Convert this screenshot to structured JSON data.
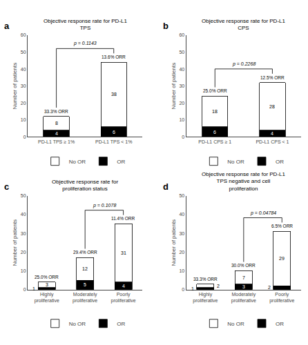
{
  "chart_data": [
    {
      "type": "bar",
      "panel_label": "a",
      "title": "Objective response rate for PD-L1 TPS",
      "categories": [
        "PD-L1 TPS ≥ 1%",
        "PD-L1 TPS < 1%"
      ],
      "series": [
        {
          "name": "OR",
          "color": "#000000",
          "values": [
            4,
            6
          ]
        },
        {
          "name": "No OR",
          "color": "#ffffff",
          "values": [
            8,
            38
          ]
        }
      ],
      "stacked": true,
      "data_labels": true,
      "grid": false,
      "legend": "bottom",
      "ylabel": "Number of patients",
      "ylim": [
        0,
        60
      ],
      "yticks": [
        0,
        10,
        20,
        30,
        40,
        50,
        60
      ],
      "annotations": [
        {
          "text": "33.3% ORR",
          "category": "PD-L1 TPS ≥ 1%"
        },
        {
          "text": "13.6% ORR",
          "category": "PD-L1 TPS < 1%"
        },
        {
          "text": "p = 0.1143",
          "bracket": [
            "PD-L1 TPS ≥ 1%",
            "PD-L1 TPS < 1%"
          ]
        }
      ]
    },
    {
      "type": "bar",
      "panel_label": "b",
      "title": "Objective response rate for PD-L1 CPS",
      "categories": [
        "PD-L1 CPS ≥ 1",
        "PD-L1 CPS < 1"
      ],
      "series": [
        {
          "name": "OR",
          "color": "#000000",
          "values": [
            6,
            4
          ]
        },
        {
          "name": "No OR",
          "color": "#ffffff",
          "values": [
            18,
            28
          ]
        }
      ],
      "stacked": true,
      "data_labels": true,
      "grid": false,
      "legend": "bottom",
      "ylabel": "Number of patients",
      "ylim": [
        0,
        60
      ],
      "yticks": [
        0,
        10,
        20,
        30,
        40,
        50,
        60
      ],
      "annotations": [
        {
          "text": "25.0% ORR",
          "category": "PD-L1 CPS ≥ 1"
        },
        {
          "text": "12.5% ORR",
          "category": "PD-L1 CPS < 1"
        },
        {
          "text": "p = 0.2268",
          "bracket": [
            "PD-L1 CPS ≥ 1",
            "PD-L1 CPS < 1"
          ]
        }
      ]
    },
    {
      "type": "bar",
      "panel_label": "c",
      "title": "Objective response rate for proliferation status",
      "categories": [
        "Highly\nproliferative",
        "Moderately\nproliferative",
        "Poorly\nproliferative"
      ],
      "series": [
        {
          "name": "OR",
          "color": "#000000",
          "values": [
            1,
            5,
            4
          ]
        },
        {
          "name": "No OR",
          "color": "#ffffff",
          "values": [
            3,
            12,
            31
          ]
        }
      ],
      "stacked": true,
      "data_labels": true,
      "grid": false,
      "legend": "bottom",
      "ylabel": "Number of patients",
      "ylim": [
        0,
        50
      ],
      "yticks": [
        0,
        10,
        20,
        30,
        40,
        50
      ],
      "annotations": [
        {
          "text": "25.0% ORR",
          "category": "Highly\nproliferative"
        },
        {
          "text": "29.4% ORR",
          "category": "Moderately\nproliferative"
        },
        {
          "text": "11.4% ORR",
          "category": "Poorly\nproliferative"
        },
        {
          "text": "p = 0.1078",
          "bracket": [
            "Moderately\nproliferative",
            "Poorly\nproliferative"
          ]
        }
      ]
    },
    {
      "type": "bar",
      "panel_label": "d",
      "title": "Objective response rate for PD-L1 TPS negative and cell proliferation",
      "categories": [
        "Highly\nproliferative",
        "Moderately\nproliferative",
        "Poorly\nproliferative"
      ],
      "series": [
        {
          "name": "OR",
          "color": "#000000",
          "values": [
            1,
            3,
            2
          ]
        },
        {
          "name": "No OR",
          "color": "#ffffff",
          "values": [
            2,
            7,
            29
          ]
        }
      ],
      "stacked": true,
      "data_labels": true,
      "grid": false,
      "legend": "bottom",
      "ylabel": "Number of patients",
      "ylim": [
        0,
        50
      ],
      "yticks": [
        0,
        10,
        20,
        30,
        40,
        50
      ],
      "annotations": [
        {
          "text": "33.3% ORR",
          "category": "Highly\nproliferative"
        },
        {
          "text": "30.0% ORR",
          "category": "Moderately\nproliferative"
        },
        {
          "text": "6.5% ORR",
          "category": "Poorly\nproliferative"
        },
        {
          "text": "p = 0.04784",
          "bracket": [
            "Moderately\nproliferative",
            "Poorly\nproliferative"
          ]
        }
      ]
    }
  ]
}
